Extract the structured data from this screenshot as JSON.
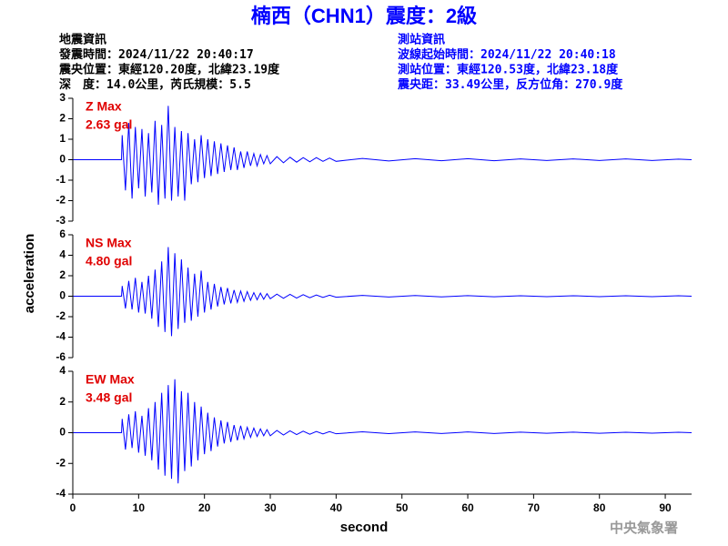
{
  "header": {
    "title": "楠西（CHN1）震度：2級",
    "left": [
      "地震資訊",
      "發震時間：2024/11/22 20:40:17",
      "震央位置：東經120.20度，北緯23.19度",
      "深　度：14.0公里，芮氏規模：5.5"
    ],
    "right": [
      "測站資訊",
      "波線起始時間：2024/11/22 20:40:18",
      "測站位置：東經120.53度，北緯23.18度",
      "震央距：33.49公里，反方位角：270.9度"
    ]
  },
  "footer": "中央氣象署",
  "chart_data": [
    {
      "type": "line",
      "max_label": "Z Max",
      "max_value": "2.63 gal",
      "color": "#0000ff",
      "xlim": [
        0,
        94
      ],
      "ylim": [
        -3,
        3
      ],
      "yticks": [
        3,
        2,
        1,
        0,
        -1,
        -2,
        -3
      ],
      "x": [
        0,
        7.4,
        7.5,
        8,
        8.5,
        9,
        9.5,
        10,
        10.5,
        11,
        11.5,
        12,
        12.5,
        13,
        13.5,
        14,
        14.5,
        15,
        15.5,
        16,
        16.5,
        17,
        17.5,
        18,
        18.5,
        19,
        19.5,
        20,
        20.5,
        21,
        21.5,
        22,
        22.5,
        23,
        23.5,
        24,
        24.5,
        25,
        25.5,
        26,
        26.5,
        27,
        27.5,
        28,
        28.5,
        29,
        29.5,
        30,
        31,
        32,
        33,
        34,
        35,
        36,
        37,
        38,
        39,
        40,
        44,
        48,
        52,
        56,
        60,
        64,
        68,
        72,
        76,
        80,
        84,
        88,
        92,
        94
      ],
      "values": [
        0,
        0,
        1.2,
        -1.5,
        1.8,
        -1.9,
        1.6,
        -1.4,
        1.5,
        -1.8,
        1.3,
        -1.6,
        1.9,
        -2.2,
        1.7,
        -1.9,
        2.63,
        -2.0,
        1.6,
        -1.8,
        1.4,
        -2.0,
        1.3,
        -1.2,
        1.0,
        -1.1,
        1.2,
        -0.9,
        1.0,
        -0.8,
        0.9,
        -0.7,
        0.8,
        -0.6,
        0.7,
        -0.5,
        0.6,
        -0.5,
        0.4,
        -0.4,
        0.4,
        -0.3,
        0.3,
        -0.3,
        0.25,
        -0.2,
        0.2,
        -0.2,
        0.15,
        -0.15,
        0.12,
        -0.12,
        0.1,
        -0.1,
        0.1,
        -0.08,
        0.08,
        -0.08,
        0.06,
        -0.06,
        0.05,
        -0.05,
        0.05,
        -0.05,
        0.04,
        -0.04,
        0.04,
        -0.04,
        0.04,
        -0.04,
        0.03,
        0
      ]
    },
    {
      "type": "line",
      "max_label": "NS Max",
      "max_value": "4.80 gal",
      "color": "#0000ff",
      "ylabel": "acceleration",
      "xlim": [
        0,
        94
      ],
      "ylim": [
        -6,
        6
      ],
      "yticks": [
        6,
        4,
        2,
        0,
        -2,
        -4,
        -6
      ],
      "x": [
        0,
        7.4,
        7.5,
        8,
        8.5,
        9,
        9.5,
        10,
        10.5,
        11,
        11.5,
        12,
        12.5,
        13,
        13.5,
        14,
        14.5,
        15,
        15.5,
        16,
        16.5,
        17,
        17.5,
        18,
        18.5,
        19,
        19.5,
        20,
        20.5,
        21,
        21.5,
        22,
        22.5,
        23,
        23.5,
        24,
        24.5,
        25,
        25.5,
        26,
        26.5,
        27,
        27.5,
        28,
        28.5,
        29,
        29.5,
        30,
        31,
        32,
        33,
        34,
        35,
        36,
        37,
        38,
        39,
        40,
        44,
        48,
        52,
        56,
        60,
        64,
        68,
        72,
        76,
        80,
        84,
        88,
        92,
        94
      ],
      "values": [
        0,
        0,
        1.0,
        -1.2,
        1.5,
        -1.3,
        1.8,
        -1.6,
        1.4,
        -1.7,
        2.0,
        -2.2,
        2.6,
        -3.0,
        3.4,
        -3.5,
        4.8,
        -3.9,
        4.2,
        -3.2,
        3.6,
        -2.6,
        2.8,
        -2.4,
        2.2,
        -2.0,
        2.5,
        -1.6,
        1.4,
        -1.3,
        1.2,
        -1.0,
        0.9,
        -0.8,
        0.8,
        -0.7,
        0.6,
        -0.6,
        0.5,
        -0.5,
        0.45,
        -0.4,
        0.35,
        -0.35,
        0.3,
        -0.3,
        0.25,
        -0.25,
        0.2,
        -0.2,
        0.18,
        -0.18,
        0.15,
        -0.15,
        0.12,
        -0.12,
        0.1,
        -0.1,
        0.08,
        -0.08,
        0.07,
        -0.07,
        0.06,
        -0.06,
        0.05,
        -0.05,
        0.05,
        -0.05,
        0.04,
        -0.04,
        0.04,
        0
      ]
    },
    {
      "type": "line",
      "max_label": "EW Max",
      "max_value": "3.48 gal",
      "color": "#0000ff",
      "xlabel": "second",
      "xlim": [
        0,
        94
      ],
      "ylim": [
        -4,
        4
      ],
      "yticks": [
        4,
        2,
        0,
        -2,
        -4
      ],
      "xticks": [
        0,
        10,
        20,
        30,
        40,
        50,
        60,
        70,
        80,
        90
      ],
      "x": [
        0,
        7.4,
        7.5,
        8,
        8.5,
        9,
        9.5,
        10,
        10.5,
        11,
        11.5,
        12,
        12.5,
        13,
        13.5,
        14,
        14.5,
        15,
        15.5,
        16,
        16.5,
        17,
        17.5,
        18,
        18.5,
        19,
        19.5,
        20,
        20.5,
        21,
        21.5,
        22,
        22.5,
        23,
        23.5,
        24,
        24.5,
        25,
        25.5,
        26,
        26.5,
        27,
        27.5,
        28,
        28.5,
        29,
        29.5,
        30,
        31,
        32,
        33,
        34,
        35,
        36,
        37,
        38,
        39,
        40,
        44,
        48,
        52,
        56,
        60,
        64,
        68,
        72,
        76,
        80,
        84,
        88,
        92,
        94
      ],
      "values": [
        0,
        0,
        0.9,
        -1.1,
        1.2,
        -1.0,
        1.4,
        -1.3,
        1.1,
        -1.5,
        1.6,
        -1.8,
        2.0,
        -2.4,
        2.6,
        -2.8,
        3.1,
        -3.0,
        3.48,
        -3.3,
        2.7,
        -2.5,
        2.6,
        -2.2,
        2.0,
        -1.8,
        1.7,
        -1.4,
        1.3,
        -1.2,
        1.0,
        -0.9,
        0.8,
        -0.7,
        0.7,
        -0.6,
        0.5,
        -0.5,
        0.45,
        -0.4,
        0.35,
        -0.3,
        0.3,
        -0.25,
        0.25,
        -0.2,
        0.2,
        -0.2,
        0.15,
        -0.15,
        0.12,
        -0.12,
        0.1,
        -0.1,
        0.08,
        -0.08,
        0.07,
        -0.07,
        0.06,
        -0.06,
        0.05,
        -0.05,
        0.05,
        -0.05,
        0.04,
        -0.04,
        0.04,
        -0.04,
        0.03,
        -0.03,
        0.03,
        0
      ]
    }
  ]
}
